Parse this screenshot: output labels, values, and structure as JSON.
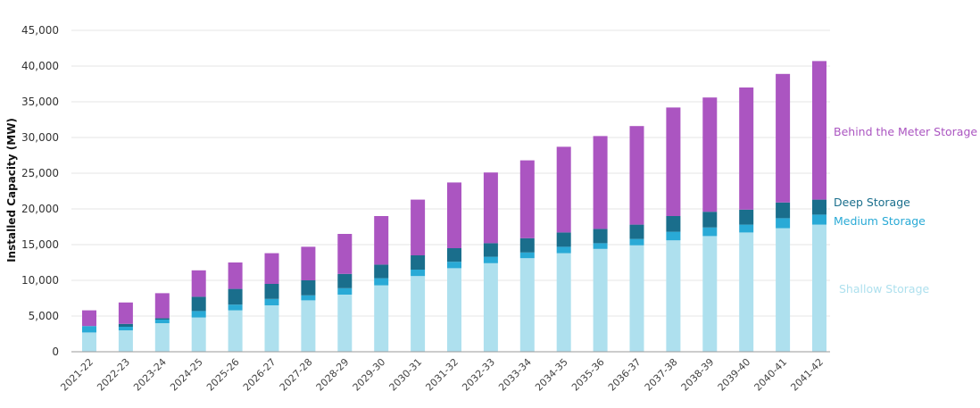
{
  "chart_data": {
    "type": "bar",
    "stacked": true,
    "title": "",
    "xlabel": "",
    "ylabel": "Installed Capacity (MW)",
    "ylim": [
      0,
      45000
    ],
    "yticks": [
      "0",
      "5,000",
      "10,000",
      "15,000",
      "20,000",
      "25,000",
      "30,000",
      "35,000",
      "40,000",
      "45,000"
    ],
    "ytick_values": [
      0,
      5000,
      10000,
      15000,
      20000,
      25000,
      30000,
      35000,
      40000,
      45000
    ],
    "grid": true,
    "legend_placement": "right (inline labels)",
    "categories": [
      "2021-22",
      "2022-23",
      "2023-24",
      "2024-25",
      "2025-26",
      "2026-27",
      "2027-28",
      "2028-29",
      "2029-30",
      "2030-31",
      "2031-32",
      "2032-33",
      "2033-34",
      "2034-35",
      "2035-36",
      "2036-37",
      "2037-38",
      "2038-39",
      "2039-40",
      "2040-41",
      "2041-42"
    ],
    "series": [
      {
        "name": "Shallow Storage",
        "color": "#aee0ee",
        "values": [
          2700,
          3000,
          4000,
          4800,
          5800,
          6500,
          7200,
          8000,
          9300,
          10600,
          11700,
          12400,
          13100,
          13800,
          14400,
          14900,
          15600,
          16200,
          16700,
          17300,
          17800
        ]
      },
      {
        "name": "Medium Storage",
        "color": "#29aad6",
        "values": [
          900,
          500,
          500,
          900,
          800,
          900,
          700,
          900,
          1000,
          900,
          900,
          900,
          800,
          900,
          800,
          900,
          1200,
          1200,
          1100,
          1400,
          1400
        ]
      },
      {
        "name": "Deep Storage",
        "color": "#1a6e8c",
        "values": [
          0,
          400,
          200,
          2000,
          2200,
          2100,
          2100,
          2000,
          1900,
          2000,
          1900,
          1900,
          2000,
          2000,
          2000,
          2000,
          2200,
          2200,
          2100,
          2200,
          2100
        ]
      },
      {
        "name": "Behind the Meter Storage",
        "color": "#ab55c1",
        "values": [
          2200,
          3000,
          3500,
          3700,
          3700,
          4300,
          4700,
          5600,
          6800,
          7800,
          9200,
          9900,
          10900,
          12000,
          13000,
          13800,
          15200,
          16000,
          17100,
          18000,
          19400
        ]
      }
    ]
  }
}
